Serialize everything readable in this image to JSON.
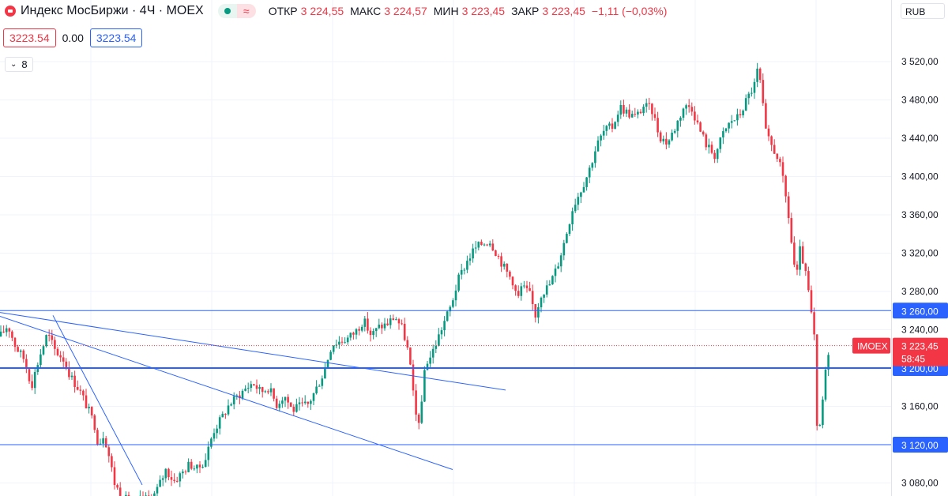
{
  "header": {
    "title": "Индекс МосБиржи · 4Ч · MOEX",
    "wave_icon": "≈",
    "ohlc": [
      {
        "label": "ОТКР",
        "value": "3 224,55"
      },
      {
        "label": "МАКС",
        "value": "3 224,57"
      },
      {
        "label": "МИН",
        "value": "3 223,45"
      },
      {
        "label": "ЗАКР",
        "value": "3 223,45"
      }
    ],
    "change": "−1,11 (−0,03%)"
  },
  "indicator": {
    "value_red": "3223.54",
    "value_plain": "0.00",
    "value_blue": "3223.54"
  },
  "collapse": {
    "count": "8"
  },
  "currency": "RUB",
  "colors": {
    "up": "#089981",
    "down": "#f23645",
    "line": "#2962ff",
    "grid": "#f0f3fa"
  },
  "chart_data": {
    "type": "candlestick",
    "y_ticks": [
      "3 520,00",
      "3 480,00",
      "3 440,00",
      "3 400,00",
      "3 360,00",
      "3 320,00",
      "3 280,00",
      "3 240,00",
      "3 160,00",
      "3 080,00"
    ],
    "horizontal_levels": [
      {
        "label": "3 260,00",
        "value": 3260,
        "width": 1
      },
      {
        "label": "3 200,00",
        "value": 3200,
        "width": 2
      },
      {
        "label": "3 120,00",
        "value": 3120,
        "width": 1
      }
    ],
    "last_price": {
      "symbol": "IMOEX",
      "value": "3 223,45",
      "countdown": "58:45",
      "level": 3223.45
    },
    "grid": true,
    "close_path": [
      [
        0,
        3233
      ],
      [
        10,
        3245
      ],
      [
        20,
        3222
      ],
      [
        30,
        3210
      ],
      [
        40,
        3182
      ],
      [
        50,
        3212
      ],
      [
        60,
        3236
      ],
      [
        70,
        3218
      ],
      [
        80,
        3210
      ],
      [
        90,
        3190
      ],
      [
        100,
        3178
      ],
      [
        110,
        3160
      ],
      [
        120,
        3140
      ],
      [
        125,
        3118
      ],
      [
        130,
        3132
      ],
      [
        135,
        3120
      ],
      [
        140,
        3100
      ],
      [
        145,
        3080
      ],
      [
        150,
        3072
      ],
      [
        160,
        3062
      ],
      [
        170,
        3052
      ],
      [
        180,
        3066
      ],
      [
        190,
        3060
      ],
      [
        200,
        3075
      ],
      [
        210,
        3094
      ],
      [
        220,
        3082
      ],
      [
        230,
        3090
      ],
      [
        240,
        3100
      ],
      [
        250,
        3094
      ],
      [
        260,
        3105
      ],
      [
        270,
        3134
      ],
      [
        280,
        3147
      ],
      [
        290,
        3162
      ],
      [
        300,
        3170
      ],
      [
        310,
        3178
      ],
      [
        320,
        3185
      ],
      [
        330,
        3175
      ],
      [
        340,
        3180
      ],
      [
        350,
        3162
      ],
      [
        360,
        3172
      ],
      [
        370,
        3156
      ],
      [
        380,
        3160
      ],
      [
        390,
        3162
      ],
      [
        400,
        3178
      ],
      [
        410,
        3196
      ],
      [
        420,
        3225
      ],
      [
        430,
        3228
      ],
      [
        440,
        3231
      ],
      [
        450,
        3238
      ],
      [
        460,
        3250
      ],
      [
        470,
        3234
      ],
      [
        480,
        3243
      ],
      [
        490,
        3246
      ],
      [
        500,
        3254
      ],
      [
        510,
        3240
      ],
      [
        518,
        3212
      ],
      [
        523,
        3172
      ],
      [
        528,
        3142
      ],
      [
        533,
        3152
      ],
      [
        538,
        3204
      ],
      [
        545,
        3212
      ],
      [
        552,
        3226
      ],
      [
        560,
        3244
      ],
      [
        570,
        3263
      ],
      [
        580,
        3292
      ],
      [
        590,
        3310
      ],
      [
        600,
        3324
      ],
      [
        610,
        3330
      ],
      [
        620,
        3333
      ],
      [
        630,
        3318
      ],
      [
        640,
        3302
      ],
      [
        650,
        3290
      ],
      [
        655,
        3270
      ],
      [
        660,
        3285
      ],
      [
        670,
        3278
      ],
      [
        678,
        3255
      ],
      [
        685,
        3278
      ],
      [
        695,
        3286
      ],
      [
        705,
        3305
      ],
      [
        715,
        3334
      ],
      [
        725,
        3368
      ],
      [
        735,
        3386
      ],
      [
        745,
        3405
      ],
      [
        755,
        3432
      ],
      [
        765,
        3448
      ],
      [
        775,
        3452
      ],
      [
        785,
        3473
      ],
      [
        795,
        3466
      ],
      [
        805,
        3462
      ],
      [
        815,
        3474
      ],
      [
        825,
        3470
      ],
      [
        835,
        3442
      ],
      [
        845,
        3435
      ],
      [
        855,
        3452
      ],
      [
        865,
        3472
      ],
      [
        875,
        3474
      ],
      [
        885,
        3450
      ],
      [
        895,
        3432
      ],
      [
        905,
        3422
      ],
      [
        915,
        3444
      ],
      [
        925,
        3458
      ],
      [
        935,
        3462
      ],
      [
        945,
        3480
      ],
      [
        955,
        3496
      ],
      [
        960,
        3515
      ],
      [
        965,
        3478
      ],
      [
        970,
        3442
      ],
      [
        978,
        3430
      ],
      [
        985,
        3420
      ],
      [
        992,
        3392
      ],
      [
        998,
        3360
      ],
      [
        1003,
        3322
      ],
      [
        1008,
        3292
      ],
      [
        1013,
        3325
      ],
      [
        1018,
        3305
      ],
      [
        1023,
        3282
      ],
      [
        1027,
        3255
      ],
      [
        1031,
        3230
      ],
      [
        1035,
        3112
      ],
      [
        1039,
        3150
      ],
      [
        1043,
        3178
      ],
      [
        1047,
        3212
      ],
      [
        1051,
        3228
      ],
      [
        1055,
        3223
      ]
    ],
    "trend_lines": [
      {
        "from": [
          0,
          3258
        ],
        "to": [
          640,
          3177
        ]
      },
      {
        "from": [
          0,
          3254
        ],
        "to": [
          573,
          3094
        ]
      },
      {
        "from": [
          67,
          3255
        ],
        "to": [
          180,
          3078
        ]
      }
    ]
  }
}
